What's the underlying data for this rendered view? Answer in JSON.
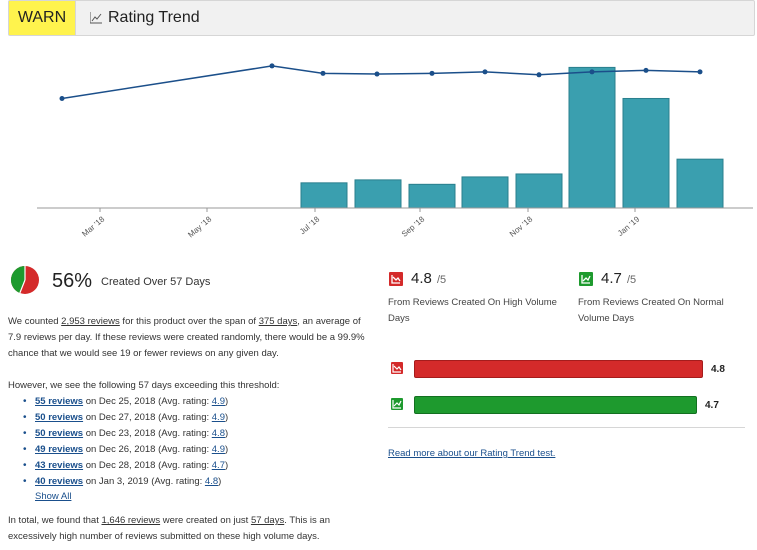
{
  "header": {
    "status": "WARN",
    "title": "Rating Trend",
    "icon": "line-chart-icon"
  },
  "chart_data": {
    "type": "bar",
    "x_tick_labels": [
      "Mar '18",
      "May '18",
      "Jul '18",
      "Sep '18",
      "Nov '18",
      "Jan '19"
    ],
    "bars": [
      {
        "x": "Jul '18",
        "value": 0.17
      },
      {
        "x": "Aug '18",
        "value": 0.19
      },
      {
        "x": "Sep '18",
        "value": 0.16
      },
      {
        "x": "Oct '18",
        "value": 0.21
      },
      {
        "x": "Nov '18",
        "value": 0.23
      },
      {
        "x": "Dec '18 a",
        "value": 0.95
      },
      {
        "x": "Dec '18 b",
        "value": 0.74
      },
      {
        "x": "Jan '19",
        "value": 0.33
      }
    ],
    "line": [
      {
        "x": "Feb '18",
        "value": 0.74
      },
      {
        "x": "Jun '18",
        "value": 0.96
      },
      {
        "x": "Jul '18",
        "value": 0.91
      },
      {
        "x": "Aug '18",
        "value": 0.905
      },
      {
        "x": "Sep '18",
        "value": 0.91
      },
      {
        "x": "Oct '18",
        "value": 0.92
      },
      {
        "x": "Nov '18",
        "value": 0.9
      },
      {
        "x": "Dec '18",
        "value": 0.92
      },
      {
        "x": "Jan '19 a",
        "value": 0.93
      },
      {
        "x": "Jan '19 b",
        "value": 0.92
      }
    ],
    "colors": {
      "bar": "#3a9faf",
      "bar_border": "#2a7f8d",
      "line": "#1b4f8a"
    }
  },
  "score": {
    "percent": "56%",
    "caption": "Created Over 57 Days",
    "pie_colors": {
      "green": "#1e9a2e",
      "red": "#d42a2a"
    },
    "green_fraction": 0.44
  },
  "paragraph1": {
    "pre": "We counted ",
    "reviews": "2,953 reviews",
    "mid": " for this product over the span of ",
    "days": "375 days",
    "post": ", an average of 7.9 reviews per day. If these reviews were created randomly, there would be a 99.9% chance that we would see 19 or fewer reviews on any given day."
  },
  "paragraph2": "However, we see the following 57 days exceeding this threshold:",
  "days_list": [
    {
      "reviews": "55 reviews",
      "date": " on Dec 25, 2018 (Avg. rating: ",
      "rating": "4.9",
      "close": ")"
    },
    {
      "reviews": "50 reviews",
      "date": " on Dec 27, 2018 (Avg. rating: ",
      "rating": "4.9",
      "close": ")"
    },
    {
      "reviews": "50 reviews",
      "date": " on Dec 23, 2018 (Avg. rating: ",
      "rating": "4.8",
      "close": ")"
    },
    {
      "reviews": "49 reviews",
      "date": " on Dec 26, 2018 (Avg. rating: ",
      "rating": "4.9",
      "close": ")"
    },
    {
      "reviews": "43 reviews",
      "date": " on Dec 28, 2018 (Avg. rating: ",
      "rating": "4.7",
      "close": ")"
    },
    {
      "reviews": "40 reviews",
      "date": " on Jan 3, 2019 (Avg. rating: ",
      "rating": "4.8",
      "close": ")"
    }
  ],
  "show_all": "Show All",
  "paragraph3": {
    "pre": "In total, we found that ",
    "reviews": "1,646 reviews",
    "mid": " were created on just ",
    "days": "57 days",
    "post": ". This is an excessively high number of reviews submitted on these high volume days."
  },
  "high_volume": {
    "value": "4.8",
    "denom": "/5",
    "caption": "From Reviews Created On High Volume Days",
    "color": "#d42a2a",
    "icon": "trend-down-icon"
  },
  "normal_volume": {
    "value": "4.7",
    "denom": "/5",
    "caption": "From Reviews Created On Normal Volume Days",
    "color": "#1e9a2e",
    "icon": "trend-up-icon"
  },
  "comparison": {
    "high": {
      "label": "4.8",
      "value": 4.8
    },
    "normal": {
      "label": "4.7",
      "value": 4.7
    }
  },
  "read_more": "Read more about our Rating Trend test."
}
